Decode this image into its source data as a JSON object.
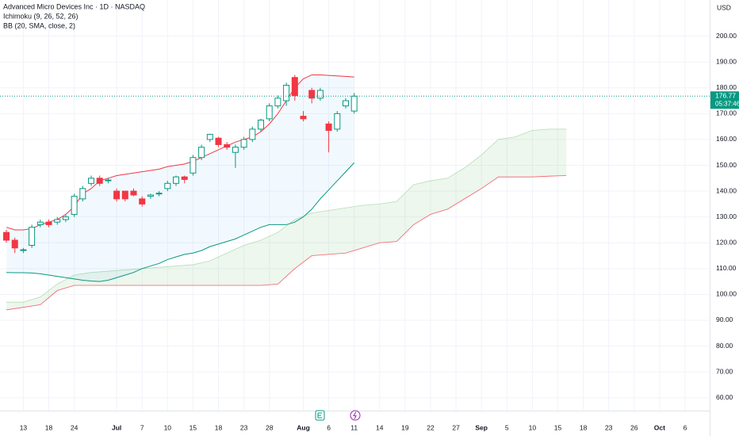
{
  "chart_data": {
    "type": "candlestick",
    "title": "Advanced Micro Devices Inc · 1D · NASDAQ",
    "indicators": [
      "Ichimoku (9, 26, 52, 26)",
      "BB (20, SMA, close, 2)"
    ],
    "currency": "USD",
    "open": [
      124,
      121,
      117,
      119,
      127,
      128,
      128,
      129,
      131,
      137,
      143,
      145,
      144,
      140,
      140,
      140,
      137,
      138,
      139,
      141,
      143,
      145.5,
      147,
      153,
      160,
      160.5,
      158,
      155,
      157,
      160,
      164,
      168,
      173,
      175,
      184,
      169,
      179,
      176,
      166,
      164,
      173,
      171
    ],
    "high": [
      125,
      122,
      118,
      127,
      129,
      129,
      130,
      131,
      139,
      142,
      146,
      146,
      145,
      141,
      140,
      141,
      138,
      139,
      140,
      144,
      146,
      146,
      154,
      158,
      162,
      161,
      159,
      158,
      161,
      165,
      168,
      174,
      177,
      182,
      185,
      171,
      180,
      180,
      167,
      171,
      176,
      178
    ],
    "low": [
      120,
      116,
      116,
      118,
      126,
      126,
      127,
      128,
      130,
      136,
      142,
      142,
      143,
      136,
      136,
      138,
      134,
      137,
      138,
      140,
      142,
      143,
      146,
      152,
      159,
      157,
      156,
      149,
      156,
      159,
      163,
      167,
      172,
      173,
      175,
      167,
      174,
      175,
      155,
      163,
      172,
      170
    ],
    "close": [
      121,
      118,
      117.3,
      126,
      128,
      127,
      129,
      130,
      138,
      141,
      145,
      143,
      144.3,
      137,
      137,
      138.5,
      135,
      138.5,
      139.2,
      143,
      145.5,
      144.5,
      153,
      157,
      162,
      158,
      157,
      157,
      160,
      164,
      167.5,
      173,
      176,
      181,
      177,
      168,
      176,
      179,
      163.5,
      170,
      175,
      176.77
    ],
    "up_color": "#089981",
    "down_color": "#f23645",
    "bb": {
      "upper": [
        126,
        125,
        125,
        125.5,
        127,
        128,
        129,
        131,
        134,
        139,
        141,
        144,
        145,
        146,
        146.5,
        147,
        147.5,
        148,
        148.5,
        149.5,
        150,
        150.5,
        151.5,
        153,
        154.5,
        156,
        157.5,
        159,
        160,
        161,
        163,
        166,
        170,
        175,
        180,
        183.5,
        185,
        185,
        184.8,
        184.6,
        184.4,
        184.2
      ],
      "lower": [
        108.5,
        108.4,
        108.4,
        108.3,
        108,
        107.5,
        107,
        106.5,
        106,
        105.5,
        105.2,
        105,
        105.5,
        106.5,
        107.5,
        108.5,
        110,
        111,
        112,
        113.5,
        114.5,
        115.5,
        116,
        117,
        118.5,
        119.5,
        120.5,
        121.5,
        123,
        124.5,
        126,
        127,
        127,
        127,
        128,
        130,
        133,
        137,
        140.5,
        144,
        147.5,
        151
      ],
      "upper_color": "#f23645",
      "lower_color": "#089981",
      "fill": "#2196f3"
    },
    "ichimoku": {
      "x": [
        0,
        2,
        4,
        6,
        8,
        10,
        12,
        14,
        16,
        18,
        20,
        22,
        24,
        26,
        28,
        30,
        32,
        34,
        36,
        38,
        40,
        42,
        44,
        46,
        48,
        50,
        52,
        54,
        56,
        58,
        60,
        62,
        64,
        66
      ],
      "span_a": [
        97,
        97,
        99,
        104,
        107.5,
        108.5,
        109,
        109.5,
        110,
        110.5,
        111,
        111.5,
        113,
        116,
        119,
        121,
        124,
        129,
        131.5,
        132.5,
        133.5,
        134.5,
        135,
        136,
        142.5,
        144,
        145,
        149,
        154,
        160,
        161,
        163.5,
        164,
        164
      ],
      "span_b": [
        94,
        95,
        96,
        101.5,
        103.5,
        103.5,
        103.5,
        103.5,
        103.5,
        103.5,
        103.5,
        103.5,
        103.5,
        103.5,
        103.5,
        103.5,
        104,
        110,
        115,
        115.5,
        116,
        118,
        120,
        120.5,
        127,
        131,
        133,
        137,
        141,
        145.5,
        145.5,
        145.5,
        145.8,
        146
      ],
      "span_a_color": "#a5d6a7",
      "span_b_color": "#f23645",
      "fill": "#4caf50"
    },
    "last_price": 176.77,
    "countdown": "05:37:46",
    "xlim": [
      -0.75,
      82.9
    ],
    "xticks": [
      {
        "value": 2,
        "label": "13"
      },
      {
        "value": 5,
        "label": "18"
      },
      {
        "value": 8,
        "label": "24"
      },
      {
        "value": 13,
        "label": "Jul"
      },
      {
        "value": 16,
        "label": "7"
      },
      {
        "value": 19,
        "label": "10"
      },
      {
        "value": 22,
        "label": "15"
      },
      {
        "value": 25,
        "label": "18"
      },
      {
        "value": 28,
        "label": "23"
      },
      {
        "value": 31,
        "label": "28"
      },
      {
        "value": 35,
        "label": "Aug"
      },
      {
        "value": 38,
        "label": "6"
      },
      {
        "value": 41,
        "label": "11"
      },
      {
        "value": 44,
        "label": "14"
      },
      {
        "value": 47,
        "label": "19"
      },
      {
        "value": 50,
        "label": "22"
      },
      {
        "value": 53,
        "label": "27"
      },
      {
        "value": 56,
        "label": "Sep"
      },
      {
        "value": 59,
        "label": "5"
      },
      {
        "value": 62,
        "label": "10"
      },
      {
        "value": 65,
        "label": "15"
      },
      {
        "value": 68,
        "label": "18"
      },
      {
        "value": 71,
        "label": "23"
      },
      {
        "value": 74,
        "label": "26"
      },
      {
        "value": 77,
        "label": "Oct"
      },
      {
        "value": 80,
        "label": "6"
      }
    ],
    "ylim": [
      55,
      214
    ],
    "yticks": [
      {
        "value": 60,
        "label": "60.00"
      },
      {
        "value": 70,
        "label": "70.00"
      },
      {
        "value": 80,
        "label": "80.00"
      },
      {
        "value": 90,
        "label": "90.00"
      },
      {
        "value": 100,
        "label": "100.00"
      },
      {
        "value": 110,
        "label": "110.00"
      },
      {
        "value": 120,
        "label": "120.00"
      },
      {
        "value": 130,
        "label": "130.00"
      },
      {
        "value": 140,
        "label": "140.00"
      },
      {
        "value": 150,
        "label": "150.00"
      },
      {
        "value": 160,
        "label": "160.00"
      },
      {
        "value": 170,
        "label": "170.00"
      },
      {
        "value": 180,
        "label": "180.00"
      },
      {
        "value": 190,
        "label": "190.00"
      },
      {
        "value": 200,
        "label": "200.00"
      }
    ],
    "grid": true
  }
}
